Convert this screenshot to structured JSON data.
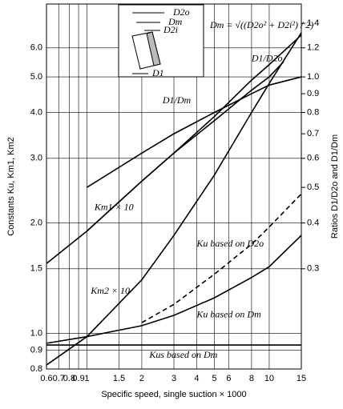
{
  "chart_data": {
    "type": "line",
    "x_label": "Specific speed, single suction × 1000",
    "y_label": "Constants Ku, Km1, Km2",
    "y2_label": "Ratios D1/D2o and D1/Dm",
    "formula": "Dm = √((D2o² + D2i²) / 2)",
    "inset_labels": [
      "D2o",
      "Dm",
      "D2i",
      "D1"
    ],
    "log_x": true,
    "log_y": true,
    "grid": true,
    "xlim": [
      0.6,
      15
    ],
    "ylim": [
      0.8,
      7.9
    ],
    "y2lim": [
      0.16,
      1.58
    ],
    "xticks": [
      0.6,
      0.7,
      0.8,
      0.9,
      1,
      1.5,
      2,
      3,
      4,
      5,
      6,
      8,
      10,
      15
    ],
    "yticks": [
      0.8,
      0.9,
      {
        "value": 1,
        "label": "1.0"
      },
      1.5,
      {
        "value": 2,
        "label": "2.0"
      },
      {
        "value": 3,
        "label": "3.0"
      },
      {
        "value": 4,
        "label": "4.0"
      },
      {
        "value": 5,
        "label": "5.0"
      },
      {
        "value": 6,
        "label": "6.0"
      }
    ],
    "y2ticks": [
      0.3,
      0.4,
      0.5,
      0.6,
      0.7,
      0.8,
      0.9,
      {
        "value": 1,
        "label": "1.0"
      },
      1.2,
      1.4
    ],
    "series": [
      {
        "name": "Km1 × 10",
        "color": "#000000",
        "x": [
          0.6,
          1,
          2,
          3,
          5,
          8,
          10,
          15
        ],
        "values": [
          1.55,
          1.9,
          2.6,
          3.1,
          3.9,
          4.9,
          5.4,
          6.5
        ]
      },
      {
        "name": "D1/D2o",
        "color": "#000000",
        "axis": "y2",
        "x": [
          1,
          2,
          3,
          5,
          8,
          10,
          15
        ],
        "values": [
          0.5,
          0.62,
          0.7,
          0.8,
          0.9,
          0.95,
          1.0
        ]
      },
      {
        "name": "D1/Dm",
        "color": "#000000",
        "axis": "y2",
        "x": [
          1,
          2,
          3,
          5,
          8,
          10,
          12
        ],
        "values": [
          0.38,
          0.52,
          0.62,
          0.76,
          0.92,
          1.0,
          1.1
        ]
      },
      {
        "name": "Km2 × 10",
        "color": "#000000",
        "x": [
          0.6,
          1,
          2,
          3,
          5,
          8,
          10,
          15
        ],
        "values": [
          0.82,
          0.98,
          1.4,
          1.85,
          2.7,
          4.0,
          4.8,
          6.6
        ]
      },
      {
        "name": "Ku based on D2o",
        "color": "#000000",
        "dashed": true,
        "x": [
          2,
          3,
          5,
          8,
          10,
          15
        ],
        "values": [
          1.07,
          1.2,
          1.45,
          1.75,
          1.95,
          2.4
        ]
      },
      {
        "name": "Ku based on Dm",
        "color": "#000000",
        "x": [
          0.6,
          1,
          2,
          3,
          5,
          8,
          10,
          15
        ],
        "values": [
          0.94,
          0.98,
          1.05,
          1.12,
          1.25,
          1.42,
          1.52,
          1.85
        ]
      },
      {
        "name": "Kus based on Dm",
        "color": "#000000",
        "x": [
          0.6,
          15
        ],
        "values": [
          0.93,
          0.93
        ]
      }
    ]
  }
}
